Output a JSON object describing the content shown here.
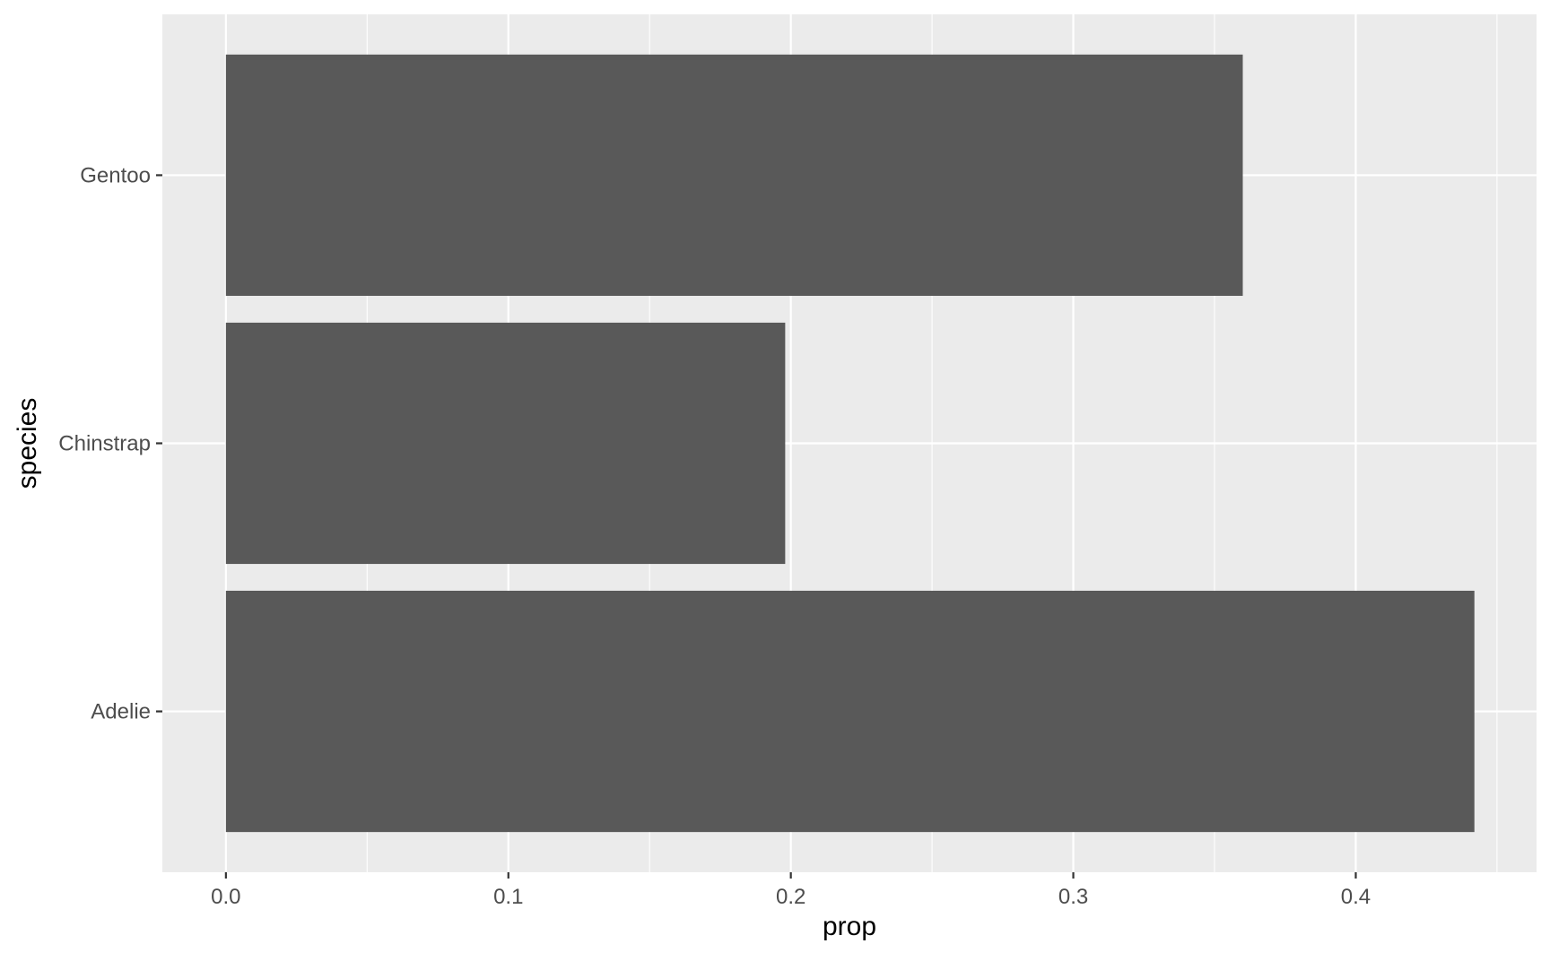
{
  "chart_data": {
    "type": "bar",
    "orientation": "horizontal",
    "categories": [
      "Adelie",
      "Chinstrap",
      "Gentoo"
    ],
    "values": [
      0.442,
      0.198,
      0.36
    ],
    "title": "",
    "xlabel": "prop",
    "ylabel": "species",
    "xlim": [
      -0.0225,
      0.464
    ],
    "x_ticks": [
      "0.0",
      "0.1",
      "0.2",
      "0.3",
      "0.4"
    ],
    "grid": true,
    "legend": "none",
    "colors": {
      "bar": "#595959",
      "panel": "#ebebeb",
      "grid_major": "#ffffff",
      "tick_text": "#4d4d4d",
      "axis_title": "#000000"
    }
  }
}
